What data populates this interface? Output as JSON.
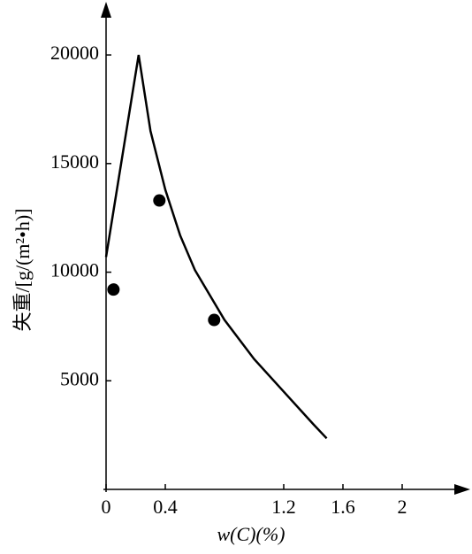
{
  "chart_data": {
    "type": "line",
    "ylabel": "失重/[g/(m²•h)]",
    "xlabel": "w(C)(%)",
    "xlim": [
      0,
      2.4
    ],
    "xticks": [
      0,
      0.4,
      1.2,
      1.6,
      2.0
    ],
    "ylim": [
      0,
      22000
    ],
    "yticks": [
      5000,
      10000,
      15000,
      20000
    ],
    "series": [
      {
        "style": "line",
        "color": "#000000",
        "x": [
          0,
          0.22,
          0.3,
          0.4,
          0.5,
          0.6,
          0.8,
          1.0,
          1.2,
          1.4,
          1.49
        ],
        "values": [
          10700,
          20000,
          16500,
          13800,
          11700,
          10100,
          7800,
          6000,
          4500,
          3000,
          2350
        ]
      },
      {
        "style": "marker",
        "color": "#000000",
        "x": [
          0.05,
          0.36,
          0.73
        ],
        "values": [
          9200,
          13300,
          7800
        ]
      }
    ]
  }
}
